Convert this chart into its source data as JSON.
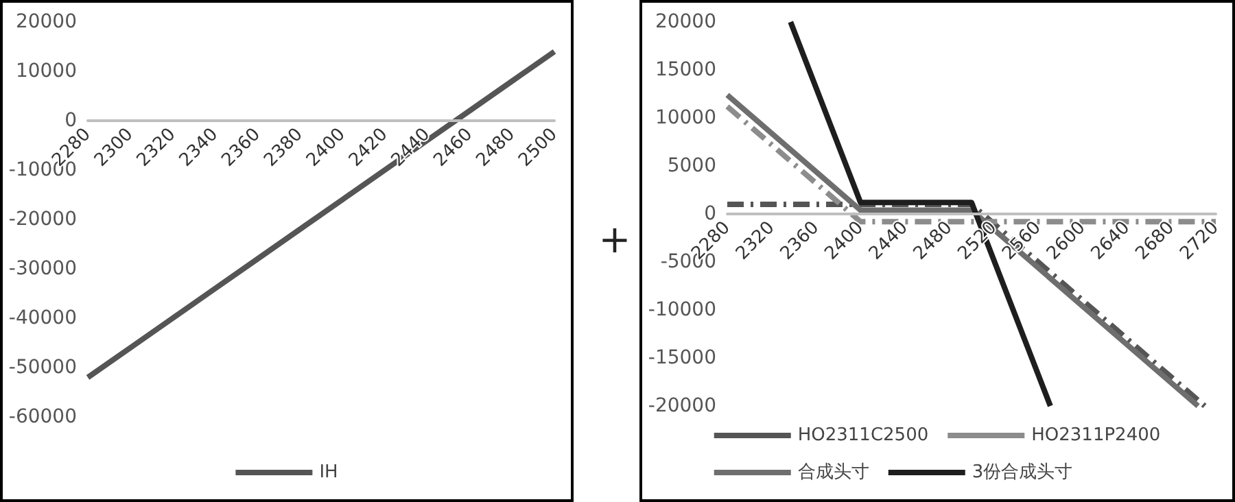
{
  "chart_data": [
    {
      "type": "line",
      "categories": [
        "2280",
        "2300",
        "2320",
        "2340",
        "2360",
        "2380",
        "2400",
        "2420",
        "2440",
        "2460",
        "2480",
        "2500"
      ],
      "series": [
        {
          "name": "IH",
          "color": "#555555",
          "values": [
            -52000,
            -46000,
            -40000,
            -34000,
            -28000,
            -22000,
            -16000,
            -10000,
            -4000,
            2000,
            8000,
            14000
          ]
        }
      ],
      "ylim": [
        -60000,
        20000
      ],
      "yticks": [
        -60000,
        -50000,
        -40000,
        -30000,
        -20000,
        -10000,
        0,
        10000,
        20000
      ],
      "grid": false,
      "legend": "bottom",
      "line_style": "solid",
      "marker": "none"
    },
    {
      "type": "line",
      "annotations": [
        "+"
      ],
      "xlim": [
        2280,
        2720
      ],
      "xticks": [
        2280,
        2320,
        2360,
        2400,
        2440,
        2480,
        2520,
        2560,
        2600,
        2640,
        2680,
        2720
      ],
      "series": [
        {
          "name": "HO2311C2500",
          "color": "#555555",
          "line_style": "dashed",
          "x": [
            2280,
            2500,
            2710
          ],
          "values": [
            1000,
            1000,
            -20000
          ]
        },
        {
          "name": "HO2311P2400",
          "color": "#8c8c8c",
          "line_style": "dashed",
          "x": [
            2280,
            2400,
            2720
          ],
          "values": [
            11200,
            -800,
            -800
          ]
        },
        {
          "name": "合成头寸",
          "color": "#6e6e6e",
          "line_style": "solid",
          "x": [
            2280,
            2400,
            2500,
            2704
          ],
          "values": [
            12400,
            400,
            400,
            -20000
          ]
        },
        {
          "name": "3份合成头寸",
          "color": "#1e1e1e",
          "line_style": "solid",
          "x": [
            2337,
            2400,
            2500,
            2571
          ],
          "values": [
            20000,
            1200,
            1200,
            -20000
          ]
        }
      ],
      "ylim": [
        -20000,
        20000
      ],
      "yticks": [
        -20000,
        -15000,
        -10000,
        -5000,
        0,
        5000,
        10000,
        15000,
        20000
      ],
      "grid": false,
      "legend": "bottom",
      "marker": "none"
    }
  ]
}
